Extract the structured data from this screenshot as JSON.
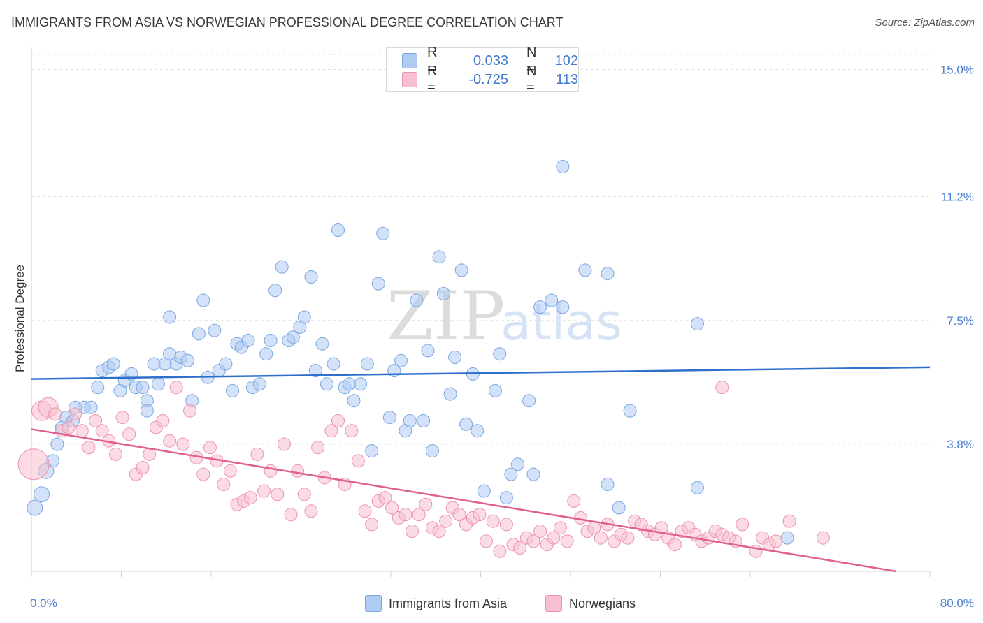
{
  "header": {
    "title": "IMMIGRANTS FROM ASIA VS NORWEGIAN PROFESSIONAL DEGREE CORRELATION CHART",
    "source": "Source: ZipAtlas.com"
  },
  "watermark": {
    "text_zip": "ZIP",
    "text_atlas": "atlas"
  },
  "legend_top": {
    "rows": [
      {
        "r_label": "R =",
        "r_value": "0.033",
        "n_label": "N =",
        "n_value": "102",
        "color": "#aecbf2",
        "border": "#7aa7e0"
      },
      {
        "r_label": "R =",
        "r_value": "-0.725",
        "n_label": "N =",
        "n_value": "113",
        "color": "#f7bfd0",
        "border": "#ec93ad"
      }
    ]
  },
  "legend_bottom": {
    "items": [
      {
        "label": "Immigrants from Asia",
        "color": "#aecbf2",
        "border": "#7aa7e0"
      },
      {
        "label": "Norwegians",
        "color": "#f7bfd0",
        "border": "#ec93ad"
      }
    ]
  },
  "chart_data": {
    "type": "scatter",
    "title": "IMMIGRANTS FROM ASIA VS NORWEGIAN PROFESSIONAL DEGREE CORRELATION CHART",
    "xlabel": "",
    "ylabel": "Professional Degree",
    "xlim": [
      0,
      80
    ],
    "ylim": [
      0,
      15.45
    ],
    "x_tick_labels": [
      {
        "value": 0,
        "label": "0.0%"
      },
      {
        "value": 80,
        "label": "80.0%"
      }
    ],
    "y_tick_labels": [
      {
        "value": 3.8,
        "label": "3.8%"
      },
      {
        "value": 7.5,
        "label": "7.5%"
      },
      {
        "value": 11.2,
        "label": "11.2%"
      },
      {
        "value": 15.0,
        "label": "15.0%"
      }
    ],
    "grid": "horizontal-dashed",
    "legend_position": "top-center",
    "series": [
      {
        "name": "Immigrants from Asia",
        "color": "#7aa7e0",
        "fill": "#aecbf2",
        "trend": {
          "x": [
            0,
            80
          ],
          "y": [
            5.75,
            6.1
          ],
          "color": "#2f6fcc"
        },
        "points": [
          [
            0.3,
            1.9
          ],
          [
            0.9,
            2.3
          ],
          [
            1.3,
            3.0
          ],
          [
            1.9,
            3.3
          ],
          [
            2.3,
            3.8
          ],
          [
            2.7,
            4.3
          ],
          [
            3.1,
            4.6
          ],
          [
            3.7,
            4.5
          ],
          [
            3.9,
            4.9
          ],
          [
            4.7,
            4.9
          ],
          [
            5.3,
            4.9
          ],
          [
            5.9,
            5.5
          ],
          [
            6.3,
            6.0
          ],
          [
            6.9,
            6.1
          ],
          [
            7.3,
            6.2
          ],
          [
            7.9,
            5.4
          ],
          [
            8.3,
            5.7
          ],
          [
            8.9,
            5.9
          ],
          [
            9.3,
            5.5
          ],
          [
            9.9,
            5.5
          ],
          [
            10.3,
            5.1
          ],
          [
            10.3,
            4.8
          ],
          [
            10.9,
            6.2
          ],
          [
            11.3,
            5.6
          ],
          [
            11.9,
            6.2
          ],
          [
            12.3,
            7.6
          ],
          [
            12.3,
            6.5
          ],
          [
            12.9,
            6.2
          ],
          [
            13.3,
            6.4
          ],
          [
            13.9,
            6.3
          ],
          [
            14.3,
            5.1
          ],
          [
            14.9,
            7.1
          ],
          [
            15.3,
            8.1
          ],
          [
            15.7,
            5.8
          ],
          [
            16.3,
            7.2
          ],
          [
            16.7,
            6.0
          ],
          [
            17.3,
            6.2
          ],
          [
            17.9,
            5.4
          ],
          [
            18.3,
            6.8
          ],
          [
            18.7,
            6.7
          ],
          [
            19.3,
            6.9
          ],
          [
            19.7,
            5.5
          ],
          [
            20.3,
            5.6
          ],
          [
            20.9,
            6.5
          ],
          [
            21.3,
            6.9
          ],
          [
            21.7,
            8.4
          ],
          [
            22.3,
            9.1
          ],
          [
            22.9,
            6.9
          ],
          [
            23.3,
            7.0
          ],
          [
            23.9,
            7.3
          ],
          [
            24.3,
            7.6
          ],
          [
            24.9,
            8.8
          ],
          [
            25.3,
            6.0
          ],
          [
            25.9,
            6.8
          ],
          [
            26.3,
            5.6
          ],
          [
            26.9,
            6.2
          ],
          [
            27.3,
            10.2
          ],
          [
            27.9,
            5.5
          ],
          [
            28.3,
            5.6
          ],
          [
            28.7,
            5.1
          ],
          [
            29.3,
            5.6
          ],
          [
            29.9,
            6.2
          ],
          [
            30.3,
            3.6
          ],
          [
            30.9,
            8.6
          ],
          [
            31.3,
            10.1
          ],
          [
            31.9,
            4.6
          ],
          [
            32.3,
            6.0
          ],
          [
            32.9,
            6.3
          ],
          [
            33.3,
            4.2
          ],
          [
            33.7,
            4.5
          ],
          [
            34.3,
            8.1
          ],
          [
            34.9,
            4.5
          ],
          [
            35.3,
            6.6
          ],
          [
            35.7,
            3.6
          ],
          [
            36.3,
            9.4
          ],
          [
            36.7,
            8.3
          ],
          [
            37.3,
            5.3
          ],
          [
            37.7,
            6.4
          ],
          [
            38.3,
            9.0
          ],
          [
            38.7,
            4.4
          ],
          [
            39.3,
            5.9
          ],
          [
            39.7,
            4.2
          ],
          [
            40.3,
            2.4
          ],
          [
            41.3,
            5.4
          ],
          [
            41.7,
            6.5
          ],
          [
            42.3,
            2.2
          ],
          [
            42.7,
            2.9
          ],
          [
            43.3,
            3.2
          ],
          [
            44.3,
            5.1
          ],
          [
            44.7,
            2.9
          ],
          [
            45.3,
            7.9
          ],
          [
            46.3,
            8.1
          ],
          [
            47.3,
            7.9
          ],
          [
            49.3,
            9.0
          ],
          [
            51.3,
            8.9
          ],
          [
            51.3,
            2.6
          ],
          [
            52.3,
            1.9
          ],
          [
            53.3,
            4.8
          ],
          [
            59.3,
            7.4
          ],
          [
            59.3,
            2.5
          ],
          [
            67.3,
            1.0
          ],
          [
            47.3,
            12.1
          ]
        ]
      },
      {
        "name": "Norwegians",
        "color": "#ec93ad",
        "fill": "#f7bfd0",
        "trend": {
          "x": [
            0,
            77
          ],
          "y": [
            4.25,
            0.0
          ],
          "color": "#e05f8f"
        },
        "points": [
          [
            0.2,
            3.2
          ],
          [
            0.9,
            4.8
          ],
          [
            1.5,
            4.9
          ],
          [
            2.1,
            4.7
          ],
          [
            2.7,
            4.2
          ],
          [
            3.3,
            4.3
          ],
          [
            3.9,
            4.7
          ],
          [
            4.5,
            4.2
          ],
          [
            5.1,
            3.7
          ],
          [
            5.7,
            4.5
          ],
          [
            6.3,
            4.2
          ],
          [
            6.9,
            3.9
          ],
          [
            7.5,
            3.5
          ],
          [
            8.1,
            4.6
          ],
          [
            8.7,
            4.1
          ],
          [
            9.3,
            2.9
          ],
          [
            9.9,
            3.1
          ],
          [
            10.5,
            3.5
          ],
          [
            11.1,
            4.3
          ],
          [
            11.7,
            4.5
          ],
          [
            12.3,
            3.9
          ],
          [
            12.9,
            5.5
          ],
          [
            13.5,
            3.8
          ],
          [
            14.1,
            4.8
          ],
          [
            14.7,
            3.4
          ],
          [
            15.3,
            2.9
          ],
          [
            15.9,
            3.7
          ],
          [
            16.5,
            3.3
          ],
          [
            17.1,
            2.6
          ],
          [
            17.7,
            3.0
          ],
          [
            18.3,
            2.0
          ],
          [
            18.9,
            2.1
          ],
          [
            19.5,
            2.2
          ],
          [
            20.1,
            3.5
          ],
          [
            20.7,
            2.4
          ],
          [
            21.3,
            3.0
          ],
          [
            21.9,
            2.3
          ],
          [
            22.5,
            3.8
          ],
          [
            23.1,
            1.7
          ],
          [
            23.7,
            3.0
          ],
          [
            24.3,
            2.3
          ],
          [
            24.9,
            1.8
          ],
          [
            25.5,
            3.7
          ],
          [
            26.1,
            2.8
          ],
          [
            26.7,
            4.2
          ],
          [
            27.3,
            4.5
          ],
          [
            27.9,
            2.6
          ],
          [
            28.5,
            4.2
          ],
          [
            29.1,
            3.3
          ],
          [
            29.7,
            1.8
          ],
          [
            30.3,
            1.4
          ],
          [
            30.9,
            2.1
          ],
          [
            31.5,
            2.2
          ],
          [
            32.1,
            1.9
          ],
          [
            32.7,
            1.6
          ],
          [
            33.3,
            1.7
          ],
          [
            33.9,
            1.2
          ],
          [
            34.5,
            1.7
          ],
          [
            35.1,
            2.0
          ],
          [
            35.7,
            1.3
          ],
          [
            36.3,
            1.2
          ],
          [
            36.9,
            1.5
          ],
          [
            37.5,
            1.9
          ],
          [
            38.1,
            1.7
          ],
          [
            38.7,
            1.4
          ],
          [
            39.3,
            1.6
          ],
          [
            39.9,
            1.7
          ],
          [
            40.5,
            0.9
          ],
          [
            41.1,
            1.5
          ],
          [
            41.7,
            0.6
          ],
          [
            42.3,
            1.4
          ],
          [
            42.9,
            0.8
          ],
          [
            43.5,
            0.7
          ],
          [
            44.1,
            1.0
          ],
          [
            44.7,
            0.9
          ],
          [
            45.3,
            1.2
          ],
          [
            45.9,
            0.8
          ],
          [
            46.5,
            1.0
          ],
          [
            47.1,
            1.3
          ],
          [
            47.7,
            0.9
          ],
          [
            48.3,
            2.1
          ],
          [
            48.9,
            1.6
          ],
          [
            49.5,
            1.2
          ],
          [
            50.1,
            1.3
          ],
          [
            50.7,
            1.0
          ],
          [
            51.3,
            1.4
          ],
          [
            51.9,
            0.9
          ],
          [
            52.5,
            1.1
          ],
          [
            53.1,
            1.0
          ],
          [
            53.7,
            1.5
          ],
          [
            54.3,
            1.4
          ],
          [
            54.9,
            1.2
          ],
          [
            55.5,
            1.1
          ],
          [
            56.1,
            1.3
          ],
          [
            56.7,
            1.0
          ],
          [
            57.3,
            0.8
          ],
          [
            57.9,
            1.2
          ],
          [
            58.5,
            1.3
          ],
          [
            59.1,
            1.1
          ],
          [
            59.7,
            0.9
          ],
          [
            60.3,
            1.0
          ],
          [
            60.9,
            1.2
          ],
          [
            61.5,
            1.1
          ],
          [
            62.1,
            1.0
          ],
          [
            62.7,
            0.9
          ],
          [
            63.3,
            1.4
          ],
          [
            64.5,
            0.6
          ],
          [
            65.1,
            1.0
          ],
          [
            65.7,
            0.8
          ],
          [
            66.3,
            0.9
          ],
          [
            67.5,
            1.5
          ],
          [
            70.5,
            1.0
          ],
          [
            61.5,
            5.5
          ]
        ]
      }
    ]
  }
}
